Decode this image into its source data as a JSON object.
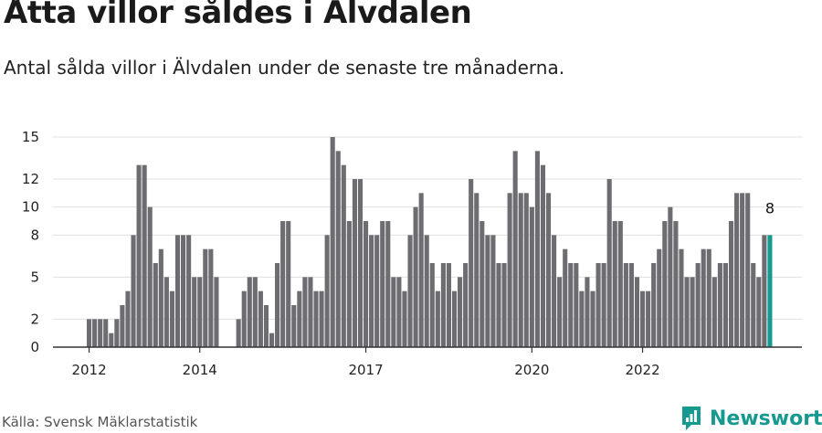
{
  "title": "Åtta villor såldes i Älvdalen",
  "subtitle": "Antal sålda villor i Älvdalen under de senaste tre månaderna.",
  "source": "Källa: Svensk Mäklarstatistik",
  "brand": {
    "name": "Newsworthy",
    "icon": "newsworthy-logo-icon",
    "color": "#16998f"
  },
  "colors": {
    "bar": "#6d6c70",
    "highlight": "#16998f",
    "grid": "#e0e0e0",
    "axis": "#333333"
  },
  "chart_data": {
    "type": "bar",
    "title": "Åtta villor såldes i Älvdalen",
    "xlabel": "",
    "ylabel": "",
    "ylim": [
      0,
      15
    ],
    "y_ticks": [
      0,
      2,
      5,
      8,
      10,
      12,
      15
    ],
    "y_tick_labels": [
      "0",
      "2",
      "5",
      "8",
      "10",
      "12",
      "15"
    ],
    "x_ticks": [
      {
        "label": "2012",
        "index": 0
      },
      {
        "label": "2014",
        "index": 20
      },
      {
        "label": "2017",
        "index": 50
      },
      {
        "label": "2020",
        "index": 80
      },
      {
        "label": "2022",
        "index": 100
      }
    ],
    "start_period": "2012-01",
    "frequency": "monthly",
    "values": [
      2,
      2,
      2,
      2,
      1,
      2,
      3,
      4,
      8,
      13,
      13,
      10,
      6,
      7,
      5,
      4,
      8,
      8,
      8,
      5,
      5,
      7,
      7,
      5,
      0,
      0,
      0,
      2,
      4,
      5,
      5,
      4,
      3,
      1,
      6,
      9,
      9,
      3,
      4,
      5,
      5,
      4,
      4,
      8,
      15,
      14,
      13,
      9,
      12,
      12,
      9,
      8,
      8,
      9,
      9,
      5,
      5,
      4,
      8,
      10,
      11,
      8,
      6,
      4,
      6,
      6,
      4,
      5,
      6,
      12,
      11,
      9,
      8,
      8,
      6,
      6,
      11,
      14,
      11,
      11,
      10,
      14,
      13,
      11,
      8,
      5,
      7,
      6,
      6,
      4,
      5,
      4,
      6,
      6,
      12,
      9,
      9,
      6,
      6,
      5,
      4,
      4,
      6,
      7,
      9,
      10,
      9,
      7,
      5,
      5,
      6,
      7,
      7,
      5,
      6,
      6,
      9,
      11,
      11,
      11,
      6,
      5,
      8,
      8
    ],
    "highlight_last": true,
    "last_value_label": "8"
  }
}
